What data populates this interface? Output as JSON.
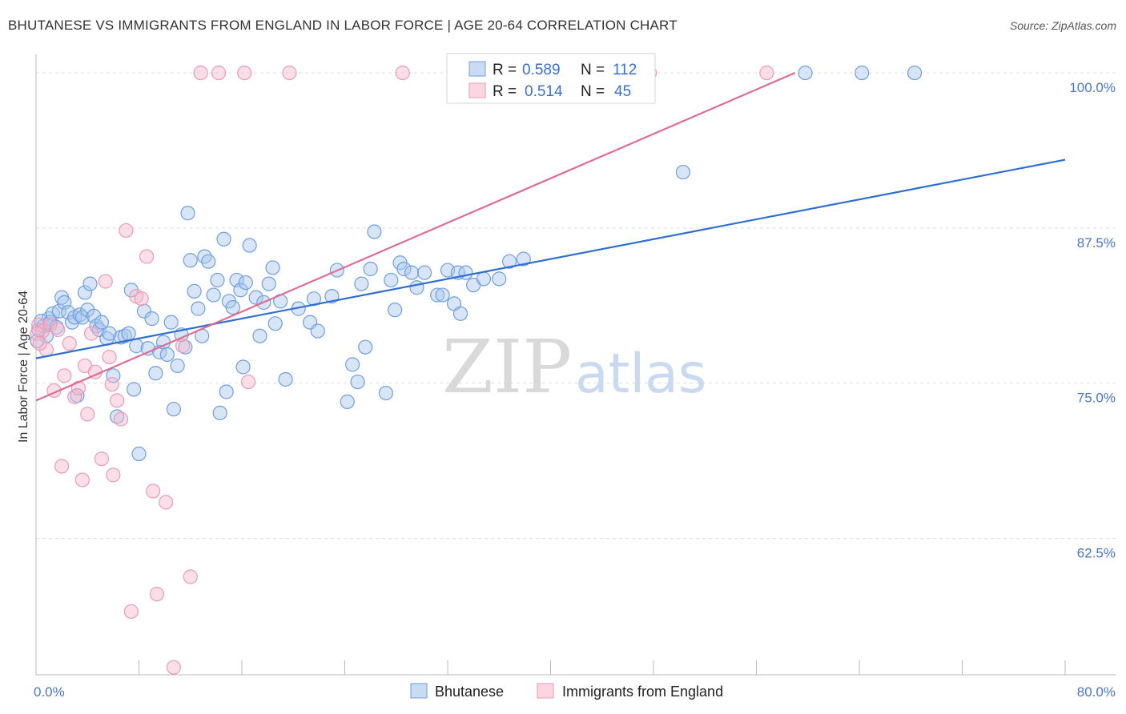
{
  "title": "BHUTANESE VS IMMIGRANTS FROM ENGLAND IN LABOR FORCE | AGE 20-64 CORRELATION CHART",
  "source": "Source: ZipAtlas.com",
  "watermark": {
    "zip": "ZIP",
    "atlas": "atlas"
  },
  "legend": {
    "r_label": "R =",
    "n_label": "N =",
    "rows": [
      {
        "r": "0.589",
        "n": "112",
        "color": "#a9c6ee"
      },
      {
        "r": "0.514",
        "n": "45",
        "color": "#f5b8cb"
      }
    ]
  },
  "bottom_legend": [
    "Bhutanese",
    "Immigrants from England"
  ],
  "chart_data": {
    "type": "scatter",
    "title": "BHUTANESE VS IMMIGRANTS FROM ENGLAND IN LABOR FORCE | AGE 20-64 CORRELATION CHART",
    "xlabel": "",
    "ylabel": "In Labor Force | Age 20-64",
    "xlim": [
      0,
      80
    ],
    "ylim": [
      51.5,
      102
    ],
    "x_tick_labels": [
      "0.0%",
      "80.0%"
    ],
    "y_ticks": [
      62.5,
      75.0,
      87.5,
      100.0
    ],
    "y_tick_labels": [
      "62.5%",
      "75.0%",
      "87.5%",
      "100.0%"
    ],
    "grid": true,
    "legend_position": "top-center",
    "series": [
      {
        "name": "Bhutanese",
        "color": "#6f9fe0",
        "fill": "#a9c6ee",
        "trend": {
          "x": [
            0,
            80
          ],
          "y": [
            77.0,
            93.0
          ],
          "color": "#2f6fd4"
        },
        "points": [
          [
            0.2,
            79.3
          ],
          [
            0.4,
            80.0
          ],
          [
            0.6,
            79.6
          ],
          [
            0.8,
            78.8
          ],
          [
            1.0,
            80.2
          ],
          [
            1.1,
            79.9
          ],
          [
            1.3,
            80.6
          ],
          [
            1.6,
            79.5
          ],
          [
            1.8,
            80.8
          ],
          [
            2.0,
            81.9
          ],
          [
            2.2,
            81.5
          ],
          [
            2.5,
            80.7
          ],
          [
            2.8,
            79.9
          ],
          [
            3.0,
            80.3
          ],
          [
            3.2,
            74.0
          ],
          [
            3.4,
            80.5
          ],
          [
            3.6,
            80.3
          ],
          [
            3.8,
            82.3
          ],
          [
            4.0,
            80.9
          ],
          [
            4.2,
            83.0
          ],
          [
            4.5,
            80.4
          ],
          [
            4.7,
            79.6
          ],
          [
            4.9,
            79.3
          ],
          [
            5.1,
            79.9
          ],
          [
            5.5,
            78.6
          ],
          [
            5.7,
            79.0
          ],
          [
            6.0,
            75.6
          ],
          [
            6.3,
            72.3
          ],
          [
            6.6,
            78.7
          ],
          [
            6.9,
            78.8
          ],
          [
            7.2,
            79.0
          ],
          [
            7.4,
            82.5
          ],
          [
            7.6,
            74.5
          ],
          [
            7.8,
            78.0
          ],
          [
            8.0,
            69.3
          ],
          [
            8.4,
            80.8
          ],
          [
            8.7,
            77.8
          ],
          [
            9.0,
            80.2
          ],
          [
            9.3,
            75.8
          ],
          [
            9.6,
            77.5
          ],
          [
            9.9,
            78.3
          ],
          [
            10.2,
            77.3
          ],
          [
            10.5,
            79.9
          ],
          [
            10.7,
            72.9
          ],
          [
            11.0,
            76.4
          ],
          [
            11.3,
            78.9
          ],
          [
            11.6,
            77.9
          ],
          [
            11.8,
            88.7
          ],
          [
            12.0,
            84.9
          ],
          [
            12.3,
            82.4
          ],
          [
            12.6,
            81.0
          ],
          [
            12.9,
            78.8
          ],
          [
            13.1,
            85.2
          ],
          [
            13.4,
            84.8
          ],
          [
            13.8,
            82.1
          ],
          [
            14.1,
            83.3
          ],
          [
            14.3,
            72.6
          ],
          [
            14.6,
            86.6
          ],
          [
            14.8,
            74.3
          ],
          [
            15.0,
            81.6
          ],
          [
            15.3,
            81.1
          ],
          [
            15.6,
            83.3
          ],
          [
            15.9,
            82.5
          ],
          [
            16.1,
            76.3
          ],
          [
            16.3,
            83.1
          ],
          [
            16.6,
            86.1
          ],
          [
            17.1,
            81.9
          ],
          [
            17.4,
            78.8
          ],
          [
            17.7,
            81.5
          ],
          [
            18.1,
            83.0
          ],
          [
            18.4,
            84.3
          ],
          [
            18.6,
            79.8
          ],
          [
            19.0,
            81.6
          ],
          [
            19.4,
            75.3
          ],
          [
            20.4,
            81.0
          ],
          [
            21.3,
            79.9
          ],
          [
            21.6,
            81.8
          ],
          [
            21.9,
            79.2
          ],
          [
            23.0,
            82.0
          ],
          [
            23.4,
            84.1
          ],
          [
            24.2,
            73.5
          ],
          [
            24.6,
            76.5
          ],
          [
            25.0,
            75.1
          ],
          [
            25.3,
            83.0
          ],
          [
            25.6,
            77.9
          ],
          [
            26.0,
            84.2
          ],
          [
            26.3,
            87.2
          ],
          [
            27.2,
            74.2
          ],
          [
            27.6,
            83.3
          ],
          [
            27.9,
            80.9
          ],
          [
            28.3,
            84.7
          ],
          [
            28.6,
            84.2
          ],
          [
            29.2,
            83.9
          ],
          [
            29.6,
            82.7
          ],
          [
            30.2,
            83.9
          ],
          [
            31.2,
            82.1
          ],
          [
            31.6,
            82.1
          ],
          [
            32.0,
            84.1
          ],
          [
            32.5,
            81.4
          ],
          [
            32.8,
            83.9
          ],
          [
            33.0,
            80.6
          ],
          [
            33.4,
            83.9
          ],
          [
            34.0,
            82.9
          ],
          [
            34.8,
            83.4
          ],
          [
            36.0,
            83.4
          ],
          [
            36.8,
            84.8
          ],
          [
            37.9,
            85.0
          ],
          [
            50.3,
            92.0
          ],
          [
            59.8,
            100.0
          ],
          [
            64.2,
            100.0
          ],
          [
            68.3,
            100.0
          ],
          [
            0.1,
            78.4
          ]
        ]
      },
      {
        "name": "Immigrants from England",
        "color": "#ee9ab5",
        "fill": "#f5b8cb",
        "trend": {
          "x": [
            0,
            59.0
          ],
          "y": [
            73.6,
            100.0
          ],
          "color": "#e06c93"
        },
        "points": [
          [
            0.2,
            79.7
          ],
          [
            0.5,
            79.2
          ],
          [
            0.8,
            77.7
          ],
          [
            1.1,
            79.7
          ],
          [
            1.4,
            74.4
          ],
          [
            1.7,
            79.3
          ],
          [
            2.0,
            68.3
          ],
          [
            2.2,
            75.6
          ],
          [
            2.6,
            78.2
          ],
          [
            3.0,
            73.9
          ],
          [
            3.3,
            74.6
          ],
          [
            3.6,
            67.2
          ],
          [
            3.8,
            76.4
          ],
          [
            4.0,
            72.5
          ],
          [
            4.3,
            79.0
          ],
          [
            4.6,
            75.9
          ],
          [
            5.1,
            68.9
          ],
          [
            5.4,
            83.2
          ],
          [
            5.7,
            77.1
          ],
          [
            5.9,
            74.9
          ],
          [
            6.0,
            67.6
          ],
          [
            6.3,
            73.6
          ],
          [
            6.6,
            72.1
          ],
          [
            7.0,
            87.3
          ],
          [
            7.4,
            56.6
          ],
          [
            7.8,
            82.0
          ],
          [
            8.2,
            81.8
          ],
          [
            8.6,
            85.2
          ],
          [
            9.1,
            66.3
          ],
          [
            9.4,
            58.0
          ],
          [
            10.1,
            65.4
          ],
          [
            10.7,
            52.1
          ],
          [
            11.4,
            78.0
          ],
          [
            12.0,
            59.4
          ],
          [
            12.8,
            100.0
          ],
          [
            14.2,
            100.0
          ],
          [
            16.2,
            100.0
          ],
          [
            16.5,
            75.1
          ],
          [
            19.7,
            100.0
          ],
          [
            28.5,
            100.0
          ],
          [
            42.6,
            100.0
          ],
          [
            47.7,
            100.0
          ],
          [
            56.8,
            100.0
          ],
          [
            0.1,
            79.0
          ],
          [
            0.3,
            78.2
          ]
        ]
      }
    ]
  }
}
